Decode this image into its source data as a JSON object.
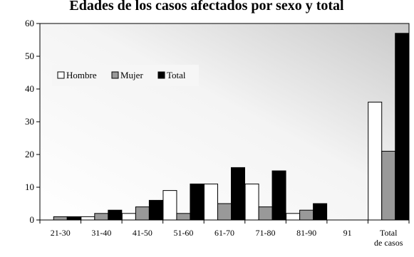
{
  "chart_data": {
    "type": "bar",
    "title": "Edades de los casos afectados por sexo y total",
    "categories": [
      "21-30",
      "31-40",
      "41-50",
      "51-60",
      "61-70",
      "71-80",
      "81-90",
      "91",
      "Total de casos"
    ],
    "category_lines": [
      [
        "21-30"
      ],
      [
        "31-40"
      ],
      [
        "41-50"
      ],
      [
        "51-60"
      ],
      [
        "61-70"
      ],
      [
        "71-80"
      ],
      [
        "81-90"
      ],
      [
        "91"
      ],
      [
        "Total",
        "de casos"
      ]
    ],
    "series": [
      {
        "name": "Hombre",
        "values": [
          0,
          1,
          2,
          9,
          11,
          11,
          2,
          0,
          36
        ]
      },
      {
        "name": "Mujer",
        "values": [
          1,
          2,
          4,
          2,
          5,
          4,
          3,
          0,
          21
        ]
      },
      {
        "name": "Total",
        "values": [
          1,
          3,
          6,
          11,
          16,
          15,
          5,
          0,
          57
        ]
      }
    ],
    "ylim": [
      0,
      60
    ],
    "yticks": [
      "0",
      "10",
      "20",
      "30",
      "40",
      "50",
      "60"
    ],
    "legend_position": "upper-left",
    "grid": false,
    "colors": {
      "Hombre": "#ffffff",
      "Mujer": "#999999",
      "Total": "#000000"
    }
  }
}
